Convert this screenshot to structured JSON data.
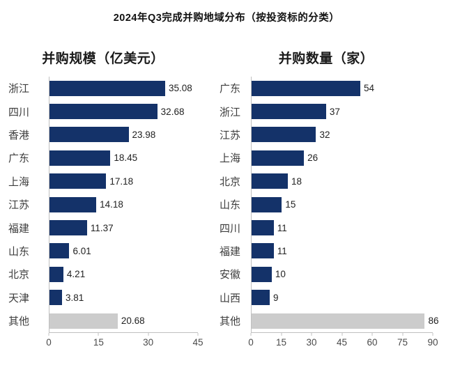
{
  "page_title": "2024年Q3完成并购地域分布（按投资标的分类）",
  "colors": {
    "bar": "#143269",
    "other_bar": "#cccccc",
    "axis_line": "#c0c0c0"
  },
  "chart_data": [
    {
      "type": "bar",
      "orientation": "horizontal",
      "title": "并购规模（亿美元）",
      "categories": [
        "浙江",
        "四川",
        "香港",
        "广东",
        "上海",
        "江苏",
        "福建",
        "山东",
        "北京",
        "天津",
        "其他"
      ],
      "values": [
        35.08,
        32.68,
        23.98,
        18.45,
        17.18,
        14.18,
        11.37,
        6.01,
        4.21,
        3.81,
        20.68
      ],
      "value_labels": [
        "35.08",
        "32.68",
        "23.98",
        "18.45",
        "17.18",
        "14.18",
        "11.37",
        "6.01",
        "4.21",
        "3.81",
        "20.68"
      ],
      "other_index": 10,
      "xlim": [
        0,
        45
      ],
      "ticks": [
        0,
        15,
        30,
        45
      ],
      "grid": false,
      "legend": false
    },
    {
      "type": "bar",
      "orientation": "horizontal",
      "title": "并购数量（家）",
      "categories": [
        "广东",
        "浙江",
        "江苏",
        "上海",
        "北京",
        "山东",
        "四川",
        "福建",
        "安徽",
        "山西",
        "其他"
      ],
      "values": [
        54,
        37,
        32,
        26,
        18,
        15,
        11,
        11,
        10,
        9,
        86
      ],
      "value_labels": [
        "54",
        "37",
        "32",
        "26",
        "18",
        "15",
        "11",
        "11",
        "10",
        "9",
        "86"
      ],
      "other_index": 10,
      "xlim": [
        0,
        90
      ],
      "ticks": [
        0,
        15,
        30,
        45,
        60,
        75,
        90
      ],
      "grid": false,
      "legend": false
    }
  ]
}
